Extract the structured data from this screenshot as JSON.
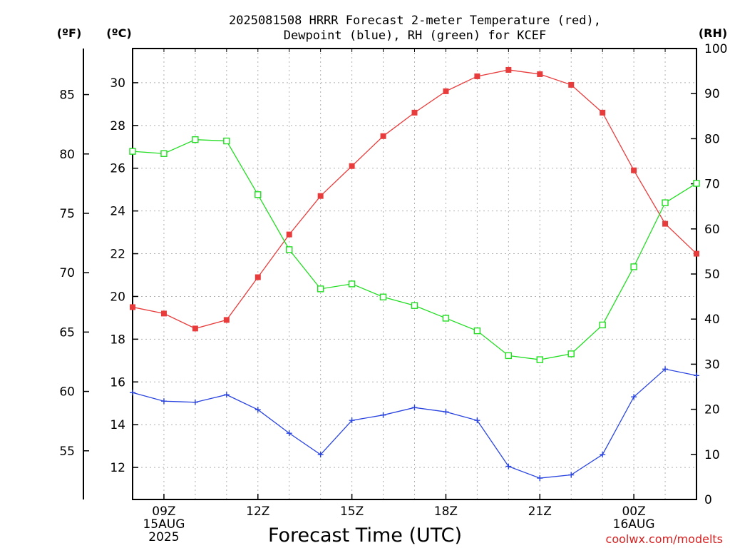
{
  "chart_data": {
    "type": "line",
    "title_line1": "2025081508 HRRR Forecast 2-meter Temperature (red),",
    "title_line2": "Dewpoint (blue), RH (green) for KCEF",
    "xlabel": "Forecast Time (UTC)",
    "credit": "coolwx.com/modelts",
    "left_outer_unit": "(ºF)",
    "left_inner_unit": "(ºC)",
    "right_unit": "(RH)",
    "hours": [
      8,
      9,
      10,
      11,
      12,
      13,
      14,
      15,
      16,
      17,
      18,
      19,
      20,
      21,
      22,
      23,
      24,
      25,
      26
    ],
    "x_ticks": [
      {
        "hour": 9,
        "lines": [
          "09Z",
          "15AUG",
          "2025"
        ]
      },
      {
        "hour": 12,
        "lines": [
          "12Z"
        ]
      },
      {
        "hour": 15,
        "lines": [
          "15Z"
        ]
      },
      {
        "hour": 18,
        "lines": [
          "18Z"
        ]
      },
      {
        "hour": 21,
        "lines": [
          "21Z"
        ]
      },
      {
        "hour": 24,
        "lines": [
          "00Z",
          "16AUG"
        ]
      }
    ],
    "xlim": [
      8,
      26
    ],
    "ylim_c": [
      10.5,
      31.6
    ],
    "ylim_rh": [
      0,
      100
    ],
    "celsius_ticks": [
      12,
      14,
      16,
      18,
      20,
      22,
      24,
      26,
      28,
      30
    ],
    "fahrenheit_ticks": [
      55,
      60,
      65,
      70,
      75,
      80,
      85
    ],
    "rh_ticks": [
      0,
      10,
      20,
      30,
      40,
      50,
      60,
      70,
      80,
      90,
      100
    ],
    "series": [
      {
        "name": "Temperature",
        "color": "#e83c3c",
        "marker": "filled-square",
        "values": [
          19.5,
          19.2,
          18.5,
          18.9,
          20.9,
          22.9,
          24.7,
          26.1,
          27.5,
          28.6,
          29.6,
          30.3,
          30.6,
          30.4,
          29.9,
          28.6,
          25.9,
          23.4,
          22.0
        ]
      },
      {
        "name": "Dewpoint",
        "color": "#2a44e0",
        "marker": "plus",
        "values": [
          15.5,
          15.1,
          15.05,
          15.4,
          14.7,
          13.6,
          12.6,
          14.2,
          14.45,
          14.8,
          14.6,
          14.2,
          12.05,
          11.5,
          11.65,
          12.6,
          15.3,
          16.6,
          16.3
        ]
      },
      {
        "name": "RH",
        "color": "#22dd22",
        "marker": "open-square",
        "values": [
          77.2,
          76.7,
          79.8,
          79.5,
          67.6,
          55.4,
          46.7,
          47.8,
          44.9,
          43.0,
          40.2,
          37.4,
          31.9,
          31.0,
          32.3,
          38.7,
          51.6,
          65.8,
          70.1
        ]
      }
    ]
  }
}
